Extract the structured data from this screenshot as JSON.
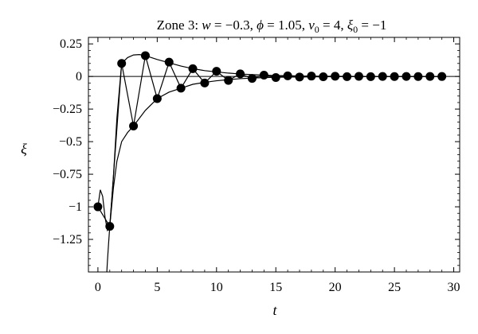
{
  "chart_data": {
    "type": "scatter",
    "title": "Zone 3: w = −0.3, ϕ = 1.05, v₀ = 4, ξ₀ = −1",
    "title_parts": {
      "prefix": "Zone 3: ",
      "w_var": "w",
      "w_val": " = −0.3, ",
      "phi_var": "ϕ",
      "phi_val": " = 1.05, ",
      "v_var": "v",
      "v_sub": "0",
      "v_val": " = 4, ",
      "xi_var": "ξ",
      "xi_sub": "0",
      "xi_val": " = −1"
    },
    "xlabel": "t",
    "ylabel": "ξ",
    "xlim": [
      -0.8,
      30.5
    ],
    "ylim": [
      -1.5,
      0.3
    ],
    "xticks": [
      0,
      5,
      10,
      15,
      20,
      25,
      30
    ],
    "xtick_labels": [
      "0",
      "5",
      "10",
      "15",
      "20",
      "25",
      "30"
    ],
    "yticks": [
      0.25,
      0,
      -0.25,
      -0.5,
      -0.75,
      -1,
      -1.25
    ],
    "ytick_labels": [
      "0.25",
      "0",
      "−0.25",
      "−0.5",
      "−0.75",
      "−1",
      "−1.25"
    ],
    "zero_line": true,
    "points": {
      "x": [
        0,
        1,
        2,
        3,
        4,
        5,
        6,
        7,
        8,
        9,
        10,
        11,
        12,
        13,
        14,
        15,
        16,
        17,
        18,
        19,
        20,
        21,
        22,
        23,
        24,
        25,
        26,
        27,
        28,
        29
      ],
      "y": [
        -1,
        -1.15,
        0.1,
        -0.38,
        0.16,
        -0.17,
        0.11,
        -0.09,
        0.06,
        -0.05,
        0.04,
        -0.03,
        0.02,
        -0.015,
        0.01,
        -0.008,
        0.005,
        -0.004,
        0.003,
        -0.002,
        0.002,
        -0.001,
        0.001,
        -0.001,
        0.0005,
        -0.0005,
        0.0003,
        -0.0003,
        0.0002,
        -0.0001
      ]
    },
    "upper_envelope": {
      "x": [
        0,
        0.2,
        0.4,
        0.6,
        0.8,
        1.0,
        1.3,
        1.6,
        2.0,
        2.5,
        3.0,
        3.5,
        4.0,
        5,
        6,
        7,
        8,
        9,
        10,
        11,
        12,
        13,
        14,
        15,
        17,
        19,
        21,
        23,
        25,
        27,
        29
      ],
      "y": [
        -1,
        -0.87,
        -0.92,
        -1.08,
        -1.18,
        -1.15,
        -0.78,
        -0.32,
        0.1,
        0.145,
        0.165,
        0.168,
        0.16,
        0.13,
        0.105,
        0.08,
        0.06,
        0.045,
        0.035,
        0.026,
        0.019,
        0.014,
        0.01,
        0.007,
        0.004,
        0.002,
        0.001,
        0.0006,
        0.0003,
        0.0002,
        0.0001
      ]
    },
    "lower_envelope": {
      "x": [
        0.72,
        0.8,
        0.9,
        1.0,
        1.3,
        1.6,
        2.0,
        2.5,
        3.0,
        4.0,
        5,
        6,
        7,
        8,
        9,
        10,
        11,
        12,
        13,
        14,
        15,
        17,
        19,
        21,
        23,
        25,
        27,
        29
      ],
      "y": [
        -1.55,
        -1.42,
        -1.28,
        -1.15,
        -0.86,
        -0.65,
        -0.5,
        -0.43,
        -0.38,
        -0.26,
        -0.17,
        -0.12,
        -0.09,
        -0.06,
        -0.045,
        -0.033,
        -0.024,
        -0.017,
        -0.012,
        -0.009,
        -0.006,
        -0.004,
        -0.002,
        -0.001,
        -0.0006,
        -0.0003,
        -0.0002,
        -0.0001
      ]
    }
  }
}
